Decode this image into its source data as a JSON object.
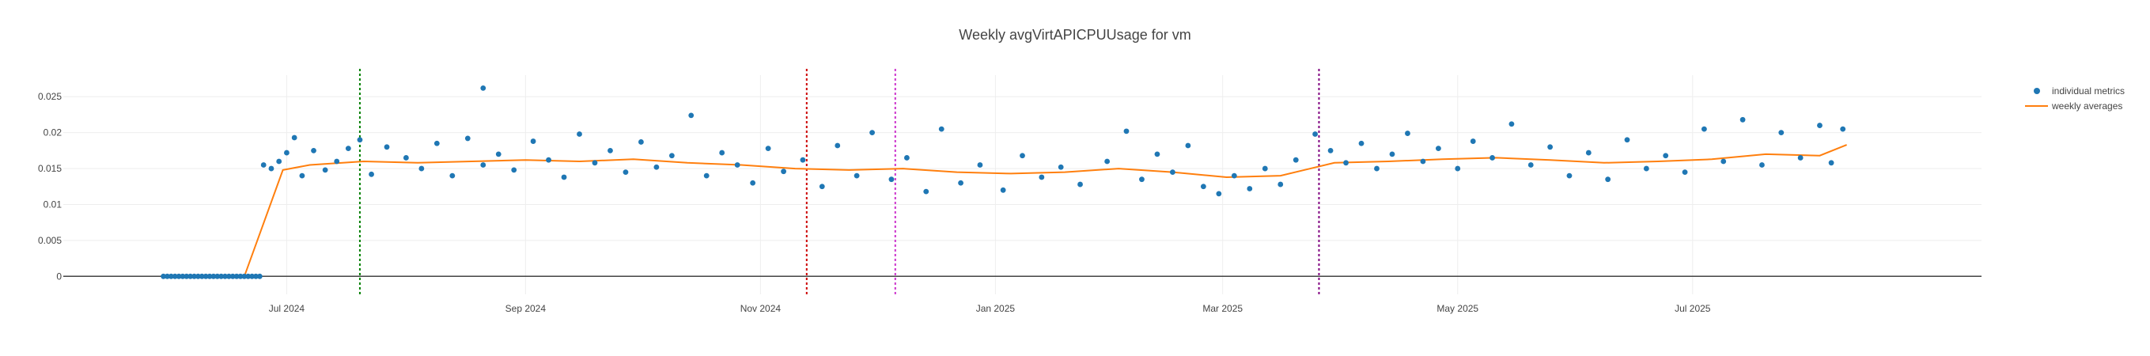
{
  "chart_data": {
    "type": "scatter",
    "title": "Weekly avgVirtAPICPUUsage for vm",
    "xlabel": "",
    "ylabel": "",
    "x_range": [
      "2024-05-04",
      "2025-09-14"
    ],
    "y_range": [
      -0.0025,
      0.028
    ],
    "grid": true,
    "legend_position": "top-right",
    "x_ticks": [
      {
        "date": "2024-07-01",
        "label": "Jul 2024"
      },
      {
        "date": "2024-09-01",
        "label": "Sep 2024"
      },
      {
        "date": "2024-11-01",
        "label": "Nov 2024"
      },
      {
        "date": "2025-01-01",
        "label": "Jan 2025"
      },
      {
        "date": "2025-03-01",
        "label": "Mar 2025"
      },
      {
        "date": "2025-05-01",
        "label": "May 2025"
      },
      {
        "date": "2025-07-01",
        "label": "Jul 2025"
      }
    ],
    "y_ticks": [
      {
        "value": 0,
        "label": "0"
      },
      {
        "value": 0.005,
        "label": "0.005"
      },
      {
        "value": 0.01,
        "label": "0.01"
      },
      {
        "value": 0.015,
        "label": "0.015"
      },
      {
        "value": 0.02,
        "label": "0.02"
      },
      {
        "value": 0.025,
        "label": "0.025"
      }
    ],
    "series": [
      {
        "name": "individual metrics",
        "style": "markers",
        "color": "#1f77b4",
        "points": [
          {
            "x": "2024-05-30",
            "y": 0
          },
          {
            "x": "2024-05-31",
            "y": 0
          },
          {
            "x": "2024-06-01",
            "y": 0
          },
          {
            "x": "2024-06-02",
            "y": 0
          },
          {
            "x": "2024-06-03",
            "y": 0
          },
          {
            "x": "2024-06-04",
            "y": 0
          },
          {
            "x": "2024-06-05",
            "y": 0
          },
          {
            "x": "2024-06-06",
            "y": 0
          },
          {
            "x": "2024-06-07",
            "y": 0
          },
          {
            "x": "2024-06-08",
            "y": 0
          },
          {
            "x": "2024-06-09",
            "y": 0
          },
          {
            "x": "2024-06-10",
            "y": 0
          },
          {
            "x": "2024-06-11",
            "y": 0
          },
          {
            "x": "2024-06-12",
            "y": 0
          },
          {
            "x": "2024-06-13",
            "y": 0
          },
          {
            "x": "2024-06-14",
            "y": 0
          },
          {
            "x": "2024-06-15",
            "y": 0
          },
          {
            "x": "2024-06-16",
            "y": 0
          },
          {
            "x": "2024-06-17",
            "y": 0
          },
          {
            "x": "2024-06-18",
            "y": 0
          },
          {
            "x": "2024-06-19",
            "y": 0
          },
          {
            "x": "2024-06-20",
            "y": 0
          },
          {
            "x": "2024-06-21",
            "y": 0
          },
          {
            "x": "2024-06-22",
            "y": 0
          },
          {
            "x": "2024-06-23",
            "y": 0
          },
          {
            "x": "2024-06-24",
            "y": 0
          },
          {
            "x": "2024-06-25",
            "y": 0.0155
          },
          {
            "x": "2024-06-27",
            "y": 0.015
          },
          {
            "x": "2024-06-29",
            "y": 0.016
          },
          {
            "x": "2024-07-01",
            "y": 0.0172
          },
          {
            "x": "2024-07-03",
            "y": 0.0193
          },
          {
            "x": "2024-07-05",
            "y": 0.014
          },
          {
            "x": "2024-07-08",
            "y": 0.0175
          },
          {
            "x": "2024-07-11",
            "y": 0.0148
          },
          {
            "x": "2024-07-14",
            "y": 0.016
          },
          {
            "x": "2024-07-17",
            "y": 0.0178
          },
          {
            "x": "2024-07-20",
            "y": 0.019
          },
          {
            "x": "2024-07-23",
            "y": 0.0142
          },
          {
            "x": "2024-07-27",
            "y": 0.018
          },
          {
            "x": "2024-08-01",
            "y": 0.0165
          },
          {
            "x": "2024-08-05",
            "y": 0.015
          },
          {
            "x": "2024-08-09",
            "y": 0.0185
          },
          {
            "x": "2024-08-13",
            "y": 0.014
          },
          {
            "x": "2024-08-17",
            "y": 0.0192
          },
          {
            "x": "2024-08-21",
            "y": 0.0155
          },
          {
            "x": "2024-08-25",
            "y": 0.017
          },
          {
            "x": "2024-08-29",
            "y": 0.0148
          },
          {
            "x": "2024-09-03",
            "y": 0.0188
          },
          {
            "x": "2024-09-07",
            "y": 0.0162
          },
          {
            "x": "2024-09-11",
            "y": 0.0138
          },
          {
            "x": "2024-09-15",
            "y": 0.0198
          },
          {
            "x": "2024-09-19",
            "y": 0.0158
          },
          {
            "x": "2024-09-23",
            "y": 0.0175
          },
          {
            "x": "2024-09-27",
            "y": 0.0145
          },
          {
            "x": "2024-10-01",
            "y": 0.0187
          },
          {
            "x": "2024-10-05",
            "y": 0.0152
          },
          {
            "x": "2024-10-09",
            "y": 0.0168
          },
          {
            "x": "2024-10-14",
            "y": 0.0224
          },
          {
            "x": "2024-10-18",
            "y": 0.014
          },
          {
            "x": "2024-10-22",
            "y": 0.0172
          },
          {
            "x": "2024-10-26",
            "y": 0.0155
          },
          {
            "x": "2024-10-30",
            "y": 0.013
          },
          {
            "x": "2024-11-03",
            "y": 0.0178
          },
          {
            "x": "2024-11-07",
            "y": 0.0146
          },
          {
            "x": "2024-11-12",
            "y": 0.0162
          },
          {
            "x": "2024-11-17",
            "y": 0.0125
          },
          {
            "x": "2024-11-21",
            "y": 0.0182
          },
          {
            "x": "2024-11-26",
            "y": 0.014
          },
          {
            "x": "2024-11-30",
            "y": 0.02
          },
          {
            "x": "2024-12-05",
            "y": 0.0135
          },
          {
            "x": "2024-12-09",
            "y": 0.0165
          },
          {
            "x": "2024-12-14",
            "y": 0.0118
          },
          {
            "x": "2024-12-18",
            "y": 0.0205
          },
          {
            "x": "2024-12-23",
            "y": 0.013
          },
          {
            "x": "2024-12-28",
            "y": 0.0155
          },
          {
            "x": "2025-01-03",
            "y": 0.012
          },
          {
            "x": "2025-01-08",
            "y": 0.0168
          },
          {
            "x": "2025-01-13",
            "y": 0.0138
          },
          {
            "x": "2025-01-18",
            "y": 0.0152
          },
          {
            "x": "2025-01-23",
            "y": 0.0128
          },
          {
            "x": "2025-01-30",
            "y": 0.016
          },
          {
            "x": "2025-02-04",
            "y": 0.0202
          },
          {
            "x": "2025-02-08",
            "y": 0.0135
          },
          {
            "x": "2025-02-12",
            "y": 0.017
          },
          {
            "x": "2025-02-16",
            "y": 0.0145
          },
          {
            "x": "2025-02-20",
            "y": 0.0182
          },
          {
            "x": "2025-02-24",
            "y": 0.0125
          },
          {
            "x": "2025-02-28",
            "y": 0.0115
          },
          {
            "x": "2025-03-04",
            "y": 0.014
          },
          {
            "x": "2025-03-08",
            "y": 0.0122
          },
          {
            "x": "2025-03-12",
            "y": 0.015
          },
          {
            "x": "2025-03-16",
            "y": 0.0128
          },
          {
            "x": "2025-03-20",
            "y": 0.0162
          },
          {
            "x": "2025-03-25",
            "y": 0.0198
          },
          {
            "x": "2025-03-29",
            "y": 0.0175
          },
          {
            "x": "2025-04-02",
            "y": 0.0158
          },
          {
            "x": "2025-04-06",
            "y": 0.0185
          },
          {
            "x": "2025-04-10",
            "y": 0.015
          },
          {
            "x": "2025-04-14",
            "y": 0.017
          },
          {
            "x": "2025-04-18",
            "y": 0.0199
          },
          {
            "x": "2025-04-22",
            "y": 0.016
          },
          {
            "x": "2025-04-26",
            "y": 0.0178
          },
          {
            "x": "2025-05-01",
            "y": 0.015
          },
          {
            "x": "2025-05-05",
            "y": 0.0188
          },
          {
            "x": "2025-05-10",
            "y": 0.0165
          },
          {
            "x": "2025-05-15",
            "y": 0.0212
          },
          {
            "x": "2025-05-20",
            "y": 0.0155
          },
          {
            "x": "2025-05-25",
            "y": 0.018
          },
          {
            "x": "2025-05-30",
            "y": 0.014
          },
          {
            "x": "2025-06-04",
            "y": 0.0172
          },
          {
            "x": "2025-06-09",
            "y": 0.0135
          },
          {
            "x": "2025-06-14",
            "y": 0.019
          },
          {
            "x": "2025-06-19",
            "y": 0.015
          },
          {
            "x": "2025-06-24",
            "y": 0.0168
          },
          {
            "x": "2025-06-29",
            "y": 0.0145
          },
          {
            "x": "2025-07-04",
            "y": 0.0205
          },
          {
            "x": "2025-07-09",
            "y": 0.016
          },
          {
            "x": "2025-07-14",
            "y": 0.0218
          },
          {
            "x": "2025-07-19",
            "y": 0.0155
          },
          {
            "x": "2025-07-24",
            "y": 0.02
          },
          {
            "x": "2025-07-29",
            "y": 0.0165
          },
          {
            "x": "2025-08-03",
            "y": 0.021
          },
          {
            "x": "2025-08-06",
            "y": 0.0158
          },
          {
            "x": "2025-08-09",
            "y": 0.0205
          }
        ]
      },
      {
        "name": "weekly averages",
        "style": "line",
        "color": "#ff7f0e",
        "points": [
          {
            "x": "2024-05-30",
            "y": 0
          },
          {
            "x": "2024-06-20",
            "y": 0
          },
          {
            "x": "2024-06-30",
            "y": 0.0148
          },
          {
            "x": "2024-07-07",
            "y": 0.0155
          },
          {
            "x": "2024-07-21",
            "y": 0.016
          },
          {
            "x": "2024-08-04",
            "y": 0.0158
          },
          {
            "x": "2024-08-18",
            "y": 0.016
          },
          {
            "x": "2024-09-01",
            "y": 0.0162
          },
          {
            "x": "2024-09-15",
            "y": 0.016
          },
          {
            "x": "2024-09-29",
            "y": 0.0163
          },
          {
            "x": "2024-10-13",
            "y": 0.0158
          },
          {
            "x": "2024-10-27",
            "y": 0.0155
          },
          {
            "x": "2024-11-10",
            "y": 0.015
          },
          {
            "x": "2024-11-24",
            "y": 0.0148
          },
          {
            "x": "2024-12-08",
            "y": 0.015
          },
          {
            "x": "2024-12-22",
            "y": 0.0145
          },
          {
            "x": "2025-01-05",
            "y": 0.0143
          },
          {
            "x": "2025-01-19",
            "y": 0.0145
          },
          {
            "x": "2025-02-02",
            "y": 0.015
          },
          {
            "x": "2025-02-16",
            "y": 0.0145
          },
          {
            "x": "2025-03-02",
            "y": 0.0138
          },
          {
            "x": "2025-03-16",
            "y": 0.014
          },
          {
            "x": "2025-03-30",
            "y": 0.0158
          },
          {
            "x": "2025-04-13",
            "y": 0.016
          },
          {
            "x": "2025-04-27",
            "y": 0.0163
          },
          {
            "x": "2025-05-11",
            "y": 0.0165
          },
          {
            "x": "2025-05-25",
            "y": 0.0162
          },
          {
            "x": "2025-06-08",
            "y": 0.0158
          },
          {
            "x": "2025-06-22",
            "y": 0.016
          },
          {
            "x": "2025-07-06",
            "y": 0.0163
          },
          {
            "x": "2025-07-20",
            "y": 0.017
          },
          {
            "x": "2025-08-03",
            "y": 0.0168
          },
          {
            "x": "2025-08-10",
            "y": 0.0183
          }
        ]
      }
    ],
    "vertical_markers": [
      {
        "date": "2024-07-20",
        "color": "#008000"
      },
      {
        "date": "2024-11-13",
        "color": "#cc0000"
      },
      {
        "date": "2024-12-06",
        "color": "#cc33cc"
      },
      {
        "date": "2025-03-26",
        "color": "#800080"
      }
    ],
    "annotations": [
      {
        "x": "2024-08-21",
        "y": 0.0262
      }
    ]
  },
  "ui": {
    "background": "#ffffff",
    "grid_color": "#eeeeee",
    "axis_color": "#444444"
  }
}
